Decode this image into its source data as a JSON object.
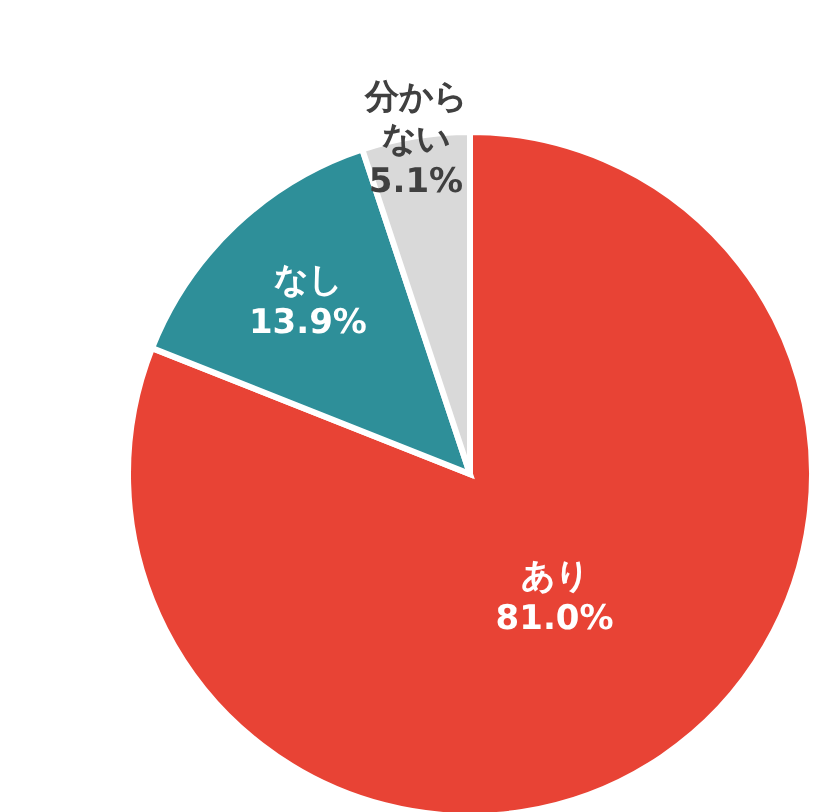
{
  "chart_data": {
    "type": "pie",
    "categories": [
      "あり",
      "なし",
      "分からない"
    ],
    "values": [
      81.0,
      13.9,
      5.1
    ],
    "colors": [
      "#e84335",
      "#2e8f99",
      "#d9d9d9"
    ],
    "value_labels": [
      "81.0%",
      "13.9%",
      "5.1%"
    ],
    "legend": false
  }
}
